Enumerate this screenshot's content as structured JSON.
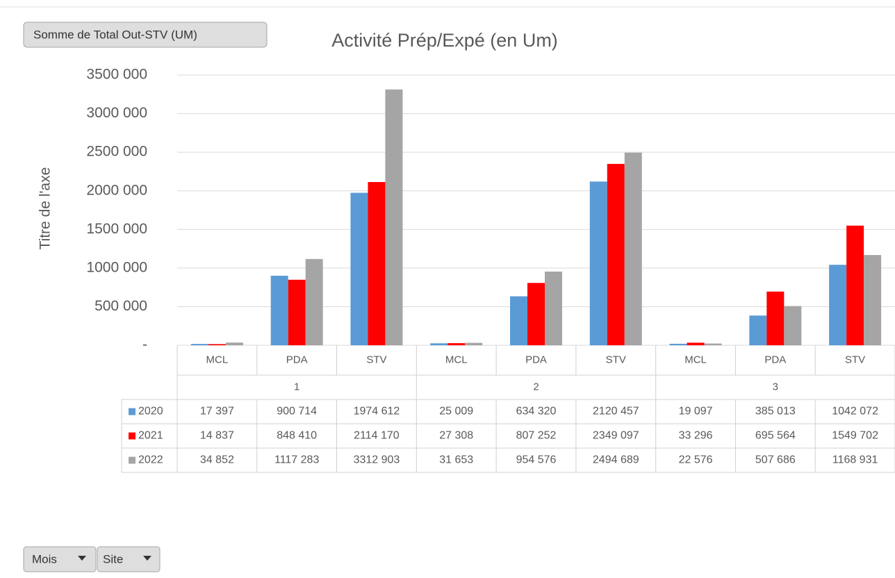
{
  "chart_data": {
    "type": "bar",
    "title": "Activité Prép/Expé (en Um)",
    "y_label": "Titre de l'axe",
    "categories": [
      "MCL",
      "PDA",
      "STV",
      "MCL",
      "PDA",
      "STV",
      "MCL",
      "PDA",
      "STV"
    ],
    "groups": [
      "1",
      "2",
      "3"
    ],
    "series": [
      {
        "name": "2020",
        "color": "#5b9bd5",
        "values": [
          17397,
          900714,
          1974612,
          25009,
          634320,
          2120457,
          19097,
          385013,
          1042072
        ],
        "value_labels": [
          "17 397",
          "900 714",
          "1974 612",
          "25 009",
          "634 320",
          "2120 457",
          "19 097",
          "385 013",
          "1042 072"
        ]
      },
      {
        "name": "2021",
        "color": "#ff0000",
        "values": [
          14837,
          848410,
          2114170,
          27308,
          807252,
          2349097,
          33296,
          695564,
          1549702
        ],
        "value_labels": [
          "14 837",
          "848 410",
          "2114 170",
          "27 308",
          "807 252",
          "2349 097",
          "33 296",
          "695 564",
          "1549 702"
        ]
      },
      {
        "name": "2022",
        "color": "#a5a5a5",
        "values": [
          34852,
          1117283,
          3312903,
          31653,
          954576,
          2494689,
          22576,
          507686,
          1168931
        ],
        "value_labels": [
          "34 852",
          "1117 283",
          "3312 903",
          "31 653",
          "954 576",
          "2494 689",
          "22 576",
          "507 686",
          "1168 931"
        ]
      }
    ],
    "ylim": [
      0,
      3500000
    ],
    "yticks": [
      {
        "value": 0,
        "label": "-"
      },
      {
        "value": 500000,
        "label": "500 000"
      },
      {
        "value": 1000000,
        "label": "1000 000"
      },
      {
        "value": 1500000,
        "label": "1500 000"
      },
      {
        "value": 2000000,
        "label": "2000 000"
      },
      {
        "value": 2500000,
        "label": "2500 000"
      },
      {
        "value": 3000000,
        "label": "3000 000"
      },
      {
        "value": 3500000,
        "label": "3500 000"
      }
    ],
    "grid": true
  },
  "field_buttons": {
    "value": "Somme de Total Out-STV (UM)",
    "filters": [
      "Mois",
      "Site"
    ]
  }
}
